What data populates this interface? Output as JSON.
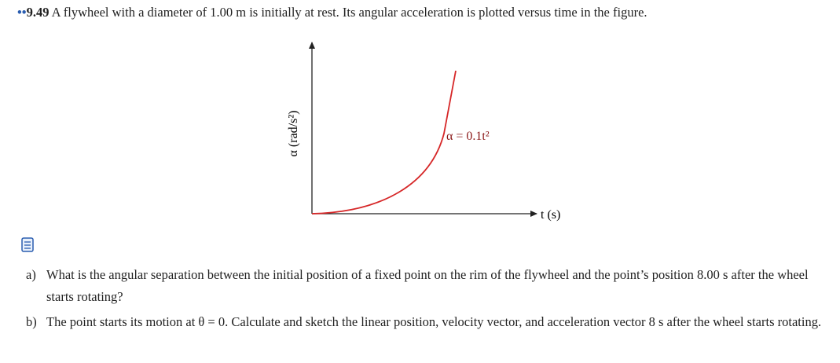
{
  "problem": {
    "marker": "••",
    "number": "9.49",
    "text": "A flywheel with a diameter of 1.00 m is initially at rest. Its angular acceleration is plotted versus time in the figure."
  },
  "figure": {
    "y_axis_label": "α (rad/s²)",
    "x_axis_label": "t (s)",
    "curve_label": "α = 0.1t²"
  },
  "questions": [
    {
      "label": "a)",
      "text": "What is the angular separation between the initial position of a fixed point on the rim of the flywheel and the point’s position 8.00 s after the wheel starts rotating?"
    },
    {
      "label": "b)",
      "text": "The point starts its motion at θ = 0. Calculate and sketch the linear position, velocity vector, and acceleration vector 8 s after the wheel starts rotating."
    }
  ]
}
